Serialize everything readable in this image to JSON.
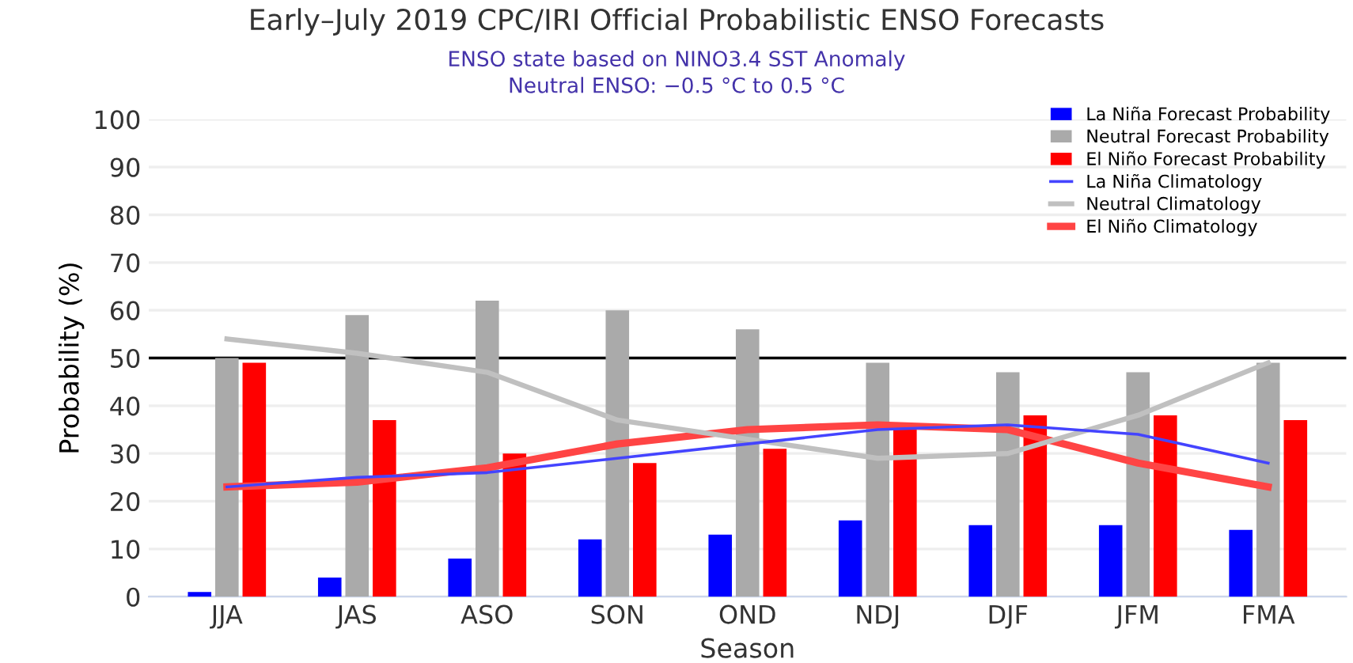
{
  "chart_data": {
    "type": "bar",
    "title": "Early–July 2019 CPC/IRI Official Probabilistic ENSO Forecasts",
    "subtitle": "ENSO state based on NINO3.4 SST Anomaly\nNeutral ENSO: −0.5 °C to 0.5 °C",
    "xlabel": "Season",
    "ylabel": "Probability (%)",
    "categories": [
      "JJA",
      "JAS",
      "ASO",
      "SON",
      "OND",
      "NDJ",
      "DJF",
      "JFM",
      "FMA"
    ],
    "series": [
      {
        "name": "La Niña Forecast Probability",
        "color": "#0000ff",
        "values": [
          1,
          4,
          8,
          12,
          13,
          16,
          15,
          15,
          14
        ]
      },
      {
        "name": "Neutral Forecast Probability",
        "color": "#aaaaaa",
        "values": [
          50,
          59,
          62,
          60,
          56,
          49,
          47,
          47,
          49
        ]
      },
      {
        "name": "El Niño Forecast Probability",
        "color": "#ff0000",
        "values": [
          49,
          37,
          30,
          28,
          31,
          35,
          38,
          38,
          37
        ]
      },
      {
        "name": "La Niña Climatology",
        "type": "line",
        "color": "#4444ff",
        "values": [
          23,
          25,
          26,
          29,
          32,
          35,
          36,
          34,
          28
        ]
      },
      {
        "name": "Neutral Climatology",
        "type": "line",
        "color": "#c0c0c0",
        "values": [
          54,
          51,
          47,
          37,
          33,
          29,
          30,
          38,
          49
        ]
      },
      {
        "name": "El Niño Climatology",
        "type": "line",
        "color": "#ff4444",
        "values": [
          23,
          24,
          27,
          32,
          35,
          36,
          35,
          28,
          23
        ]
      }
    ],
    "ylim": [
      0,
      100
    ],
    "yticks": [
      0,
      10,
      20,
      30,
      40,
      50,
      60,
      70,
      80,
      90,
      100
    ],
    "grid": "y",
    "legend": "top right",
    "ref_lines": [
      {
        "axis": "y",
        "value": 50,
        "color": "#000000"
      }
    ]
  }
}
